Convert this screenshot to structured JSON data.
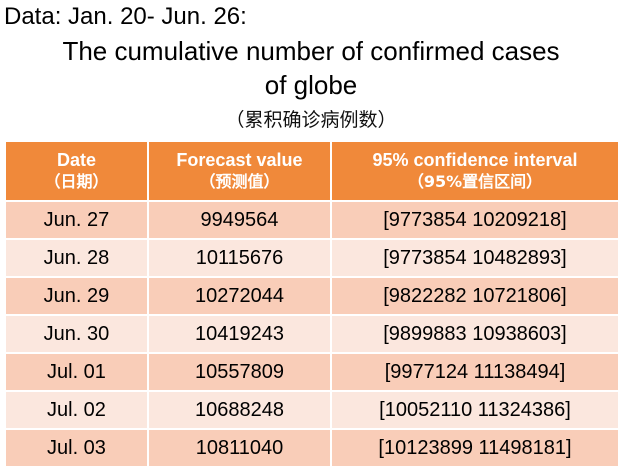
{
  "header": {
    "data_range": "Data: Jan. 20- Jun. 26:",
    "title_line1": "The cumulative number of confirmed cases",
    "title_line2": "of  globe",
    "subtitle": "（累积确诊病例数）"
  },
  "table": {
    "columns": [
      {
        "en": "Date",
        "cn": "（日期）"
      },
      {
        "en": "Forecast value",
        "cn": "（预测值）"
      },
      {
        "en": "95% confidence interval",
        "cn": "（95%置信区间）"
      }
    ],
    "rows": [
      {
        "date": "Jun. 27",
        "forecast": "9949564",
        "ci": "[9773854 10209218]"
      },
      {
        "date": "Jun. 28",
        "forecast": "10115676",
        "ci": "[9773854 10482893]"
      },
      {
        "date": "Jun. 29",
        "forecast": "10272044",
        "ci": "[9822282 10721806]"
      },
      {
        "date": "Jun. 30",
        "forecast": "10419243",
        "ci": "[9899883 10938603]"
      },
      {
        "date": "Jul. 01",
        "forecast": "10557809",
        "ci": "[9977124 11138494]"
      },
      {
        "date": "Jul. 02",
        "forecast": "10688248",
        "ci": "[10052110  11324386]"
      },
      {
        "date": "Jul. 03",
        "forecast": "10811040",
        "ci": "[10123899  11498181]"
      }
    ]
  },
  "colors": {
    "header_bg": "#f0893a",
    "row_dark": "#f9cdb8",
    "row_light": "#fbe7de"
  }
}
